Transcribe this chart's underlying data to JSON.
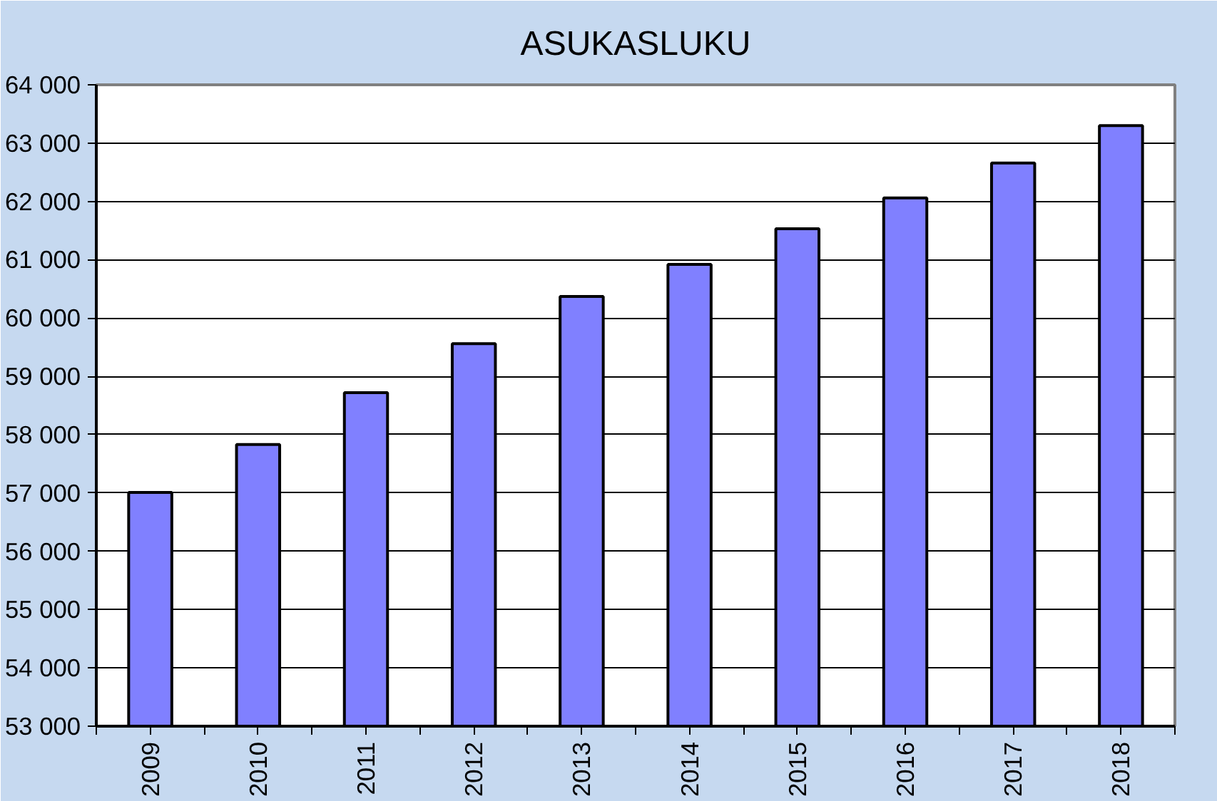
{
  "chart_data": {
    "type": "bar",
    "title": "ASUKASLUKU",
    "categories": [
      "2009",
      "2010",
      "2011",
      "2012",
      "2013",
      "2014",
      "2015",
      "2016",
      "2017",
      "2018"
    ],
    "values": [
      57010,
      57830,
      58720,
      59560,
      60370,
      60920,
      61530,
      62060,
      62660,
      63300
    ],
    "color": "#8080ff",
    "ylim": [
      53000,
      64000
    ],
    "yticks": [
      {
        "value": 53000,
        "label": "53 000"
      },
      {
        "value": 54000,
        "label": "54 000"
      },
      {
        "value": 55000,
        "label": "55 000"
      },
      {
        "value": 56000,
        "label": "56 000"
      },
      {
        "value": 57000,
        "label": "57 000"
      },
      {
        "value": 58000,
        "label": "58 000"
      },
      {
        "value": 59000,
        "label": "59 000"
      },
      {
        "value": 60000,
        "label": "60 000"
      },
      {
        "value": 61000,
        "label": "61 000"
      },
      {
        "value": 62000,
        "label": "62 000"
      },
      {
        "value": 63000,
        "label": "63 000"
      },
      {
        "value": 64000,
        "label": "64 000"
      }
    ],
    "grid": "y"
  }
}
